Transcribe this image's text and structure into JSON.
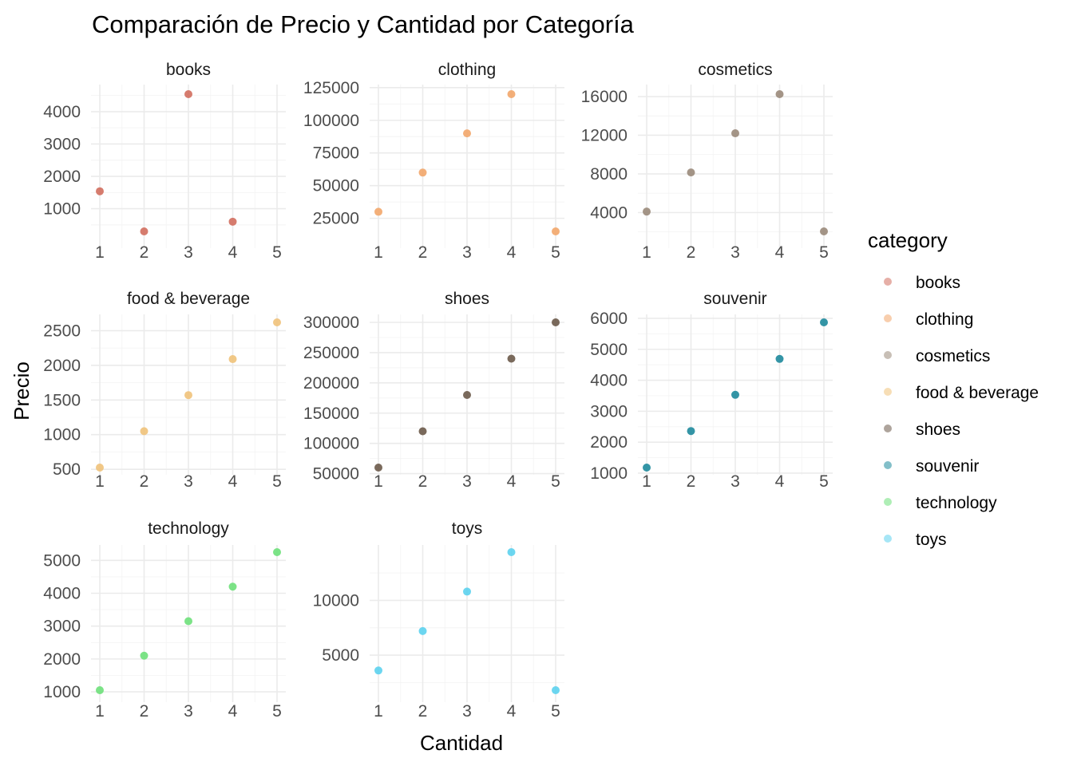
{
  "chart_data": {
    "type": "scatter",
    "title": "Comparación de Precio y Cantidad por Categoría",
    "xlabel": "Cantidad",
    "ylabel": "Precio",
    "legend_title": "category",
    "legend_position": "right",
    "grid": true,
    "facets": [
      {
        "name": "books",
        "color": "#D26E5E",
        "x": [
          1,
          2,
          3,
          4
        ],
        "y": [
          1540,
          300,
          4540,
          600
        ],
        "xlim": [
          1,
          5
        ],
        "xticks": [
          1,
          2,
          3,
          4,
          5
        ],
        "ylim": [
          300,
          4540
        ],
        "yticks": [
          1000,
          2000,
          3000,
          4000
        ],
        "yminor": [
          500,
          1500,
          2500,
          3500,
          4500
        ]
      },
      {
        "name": "clothing",
        "color": "#F2A66A",
        "x": [
          1,
          2,
          3,
          4,
          5
        ],
        "y": [
          30000,
          60000,
          90000,
          120000,
          15000
        ],
        "xlim": [
          1,
          5
        ],
        "xticks": [
          1,
          2,
          3,
          4,
          5
        ],
        "ylim": [
          15000,
          120000
        ],
        "yticks": [
          25000,
          50000,
          75000,
          100000,
          125000
        ],
        "yminor": [
          37500,
          62500,
          87500,
          112500
        ]
      },
      {
        "name": "cosmetics",
        "color": "#9A8A7A",
        "x": [
          1,
          2,
          3,
          4,
          5
        ],
        "y": [
          4100,
          8150,
          12200,
          16250,
          2050
        ],
        "xlim": [
          1,
          5
        ],
        "xticks": [
          1,
          2,
          3,
          4,
          5
        ],
        "ylim": [
          2050,
          16250
        ],
        "yticks": [
          4000,
          8000,
          12000,
          16000
        ],
        "yminor": [
          2000,
          6000,
          10000,
          14000
        ]
      },
      {
        "name": "food & beverage",
        "color": "#F0C27A",
        "x": [
          1,
          2,
          3,
          4,
          5
        ],
        "y": [
          525,
          1050,
          1570,
          2090,
          2620
        ],
        "xlim": [
          1,
          5
        ],
        "xticks": [
          1,
          2,
          3,
          4,
          5
        ],
        "ylim": [
          525,
          2620
        ],
        "yticks": [
          500,
          1000,
          1500,
          2000,
          2500
        ],
        "yminor": [
          750,
          1250,
          1750,
          2250
        ]
      },
      {
        "name": "shoes",
        "color": "#6B5A4A",
        "x": [
          1,
          2,
          3,
          4,
          5
        ],
        "y": [
          60000,
          120000,
          180000,
          240000,
          300000
        ],
        "xlim": [
          1,
          5
        ],
        "xticks": [
          1,
          2,
          3,
          4,
          5
        ],
        "ylim": [
          60000,
          300000
        ],
        "yticks": [
          50000,
          100000,
          150000,
          200000,
          250000,
          300000
        ],
        "yminor": [
          75000,
          125000,
          175000,
          225000,
          275000
        ]
      },
      {
        "name": "souvenir",
        "color": "#1E8A9C",
        "x": [
          1,
          2,
          3,
          4,
          5
        ],
        "y": [
          1180,
          2360,
          3530,
          4690,
          5870
        ],
        "xlim": [
          1,
          5
        ],
        "xticks": [
          1,
          2,
          3,
          4,
          5
        ],
        "ylim": [
          1180,
          5870
        ],
        "yticks": [
          1000,
          2000,
          3000,
          4000,
          5000,
          6000
        ],
        "yminor": [
          1500,
          2500,
          3500,
          4500,
          5500
        ]
      },
      {
        "name": "technology",
        "color": "#6EE07A",
        "x": [
          1,
          2,
          3,
          4,
          5
        ],
        "y": [
          1050,
          2100,
          3150,
          4200,
          5250
        ],
        "xlim": [
          1,
          5
        ],
        "xticks": [
          1,
          2,
          3,
          4,
          5
        ],
        "ylim": [
          1050,
          5250
        ],
        "yticks": [
          1000,
          2000,
          3000,
          4000,
          5000
        ],
        "yminor": [
          1500,
          2500,
          3500,
          4500
        ]
      },
      {
        "name": "toys",
        "color": "#5CD2EE",
        "x": [
          1,
          2,
          3,
          4,
          5
        ],
        "y": [
          3600,
          7200,
          10800,
          14400,
          1800
        ],
        "xlim": [
          1,
          5
        ],
        "xticks": [
          1,
          2,
          3,
          4,
          5
        ],
        "ylim": [
          1800,
          14400
        ],
        "yticks": [
          5000,
          10000
        ],
        "yminor": [
          2500,
          7500,
          12500
        ]
      }
    ],
    "legend": [
      {
        "label": "books",
        "color": "#D26E5E"
      },
      {
        "label": "clothing",
        "color": "#F2A66A"
      },
      {
        "label": "cosmetics",
        "color": "#9A8A7A"
      },
      {
        "label": "food & beverage",
        "color": "#F0C27A"
      },
      {
        "label": "shoes",
        "color": "#6B5A4A"
      },
      {
        "label": "souvenir",
        "color": "#1E8A9C"
      },
      {
        "label": "technology",
        "color": "#6EE07A"
      },
      {
        "label": "toys",
        "color": "#5CD2EE"
      }
    ]
  }
}
